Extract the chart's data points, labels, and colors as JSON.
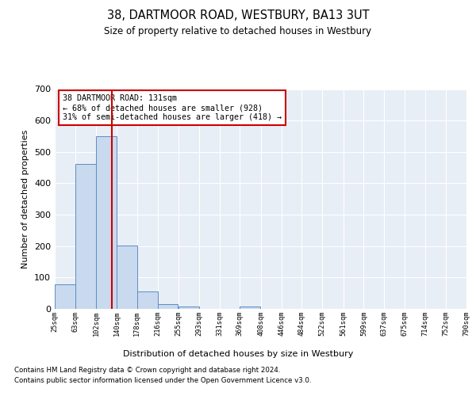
{
  "title": "38, DARTMOOR ROAD, WESTBURY, BA13 3UT",
  "subtitle": "Size of property relative to detached houses in Westbury",
  "xlabel": "Distribution of detached houses by size in Westbury",
  "ylabel": "Number of detached properties",
  "bar_edges": [
    25,
    63,
    102,
    140,
    178,
    216,
    255,
    293,
    331,
    369,
    408,
    446,
    484,
    522,
    561,
    599,
    637,
    675,
    714,
    752,
    790
  ],
  "bar_heights": [
    78,
    462,
    551,
    203,
    56,
    14,
    7,
    0,
    0,
    7,
    0,
    0,
    0,
    0,
    0,
    0,
    0,
    0,
    0,
    0
  ],
  "bar_color": "#c9d9ee",
  "bar_edge_color": "#5b8ec4",
  "property_line_x": 131,
  "property_line_color": "#cc0000",
  "annotation_text": "38 DARTMOOR ROAD: 131sqm\n← 68% of detached houses are smaller (928)\n31% of semi-detached houses are larger (418) →",
  "annotation_box_color": "#cc0000",
  "annotation_bg": "white",
  "ylim": [
    0,
    700
  ],
  "footnote1": "Contains HM Land Registry data © Crown copyright and database right 2024.",
  "footnote2": "Contains public sector information licensed under the Open Government Licence v3.0.",
  "tick_labels": [
    "25sqm",
    "63sqm",
    "102sqm",
    "140sqm",
    "178sqm",
    "216sqm",
    "255sqm",
    "293sqm",
    "331sqm",
    "369sqm",
    "408sqm",
    "446sqm",
    "484sqm",
    "522sqm",
    "561sqm",
    "599sqm",
    "637sqm",
    "675sqm",
    "714sqm",
    "752sqm",
    "790sqm"
  ],
  "background_color": "#e8eef5",
  "plot_bg_color": "#e8eef5",
  "yticks": [
    0,
    100,
    200,
    300,
    400,
    500,
    600,
    700
  ]
}
